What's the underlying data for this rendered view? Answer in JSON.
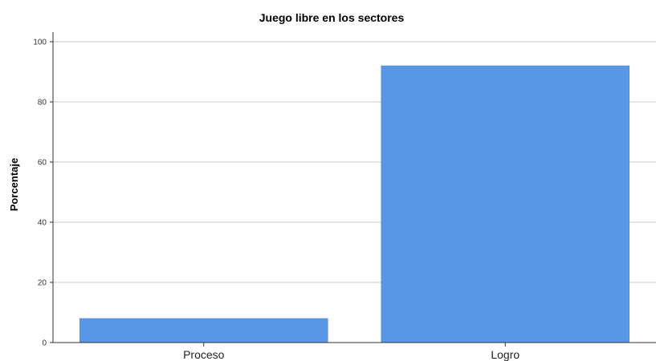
{
  "chart_data": {
    "type": "bar",
    "title": "Juego libre en los sectores",
    "xlabel": "",
    "ylabel": "Porcentaje",
    "categories": [
      "Proceso",
      "Logro"
    ],
    "values": [
      8,
      92
    ],
    "ylim": [
      0,
      100
    ],
    "yticks": [
      0,
      20,
      40,
      60,
      80,
      100
    ],
    "grid": true,
    "legend": "none",
    "bar_color": "#5896e6"
  }
}
